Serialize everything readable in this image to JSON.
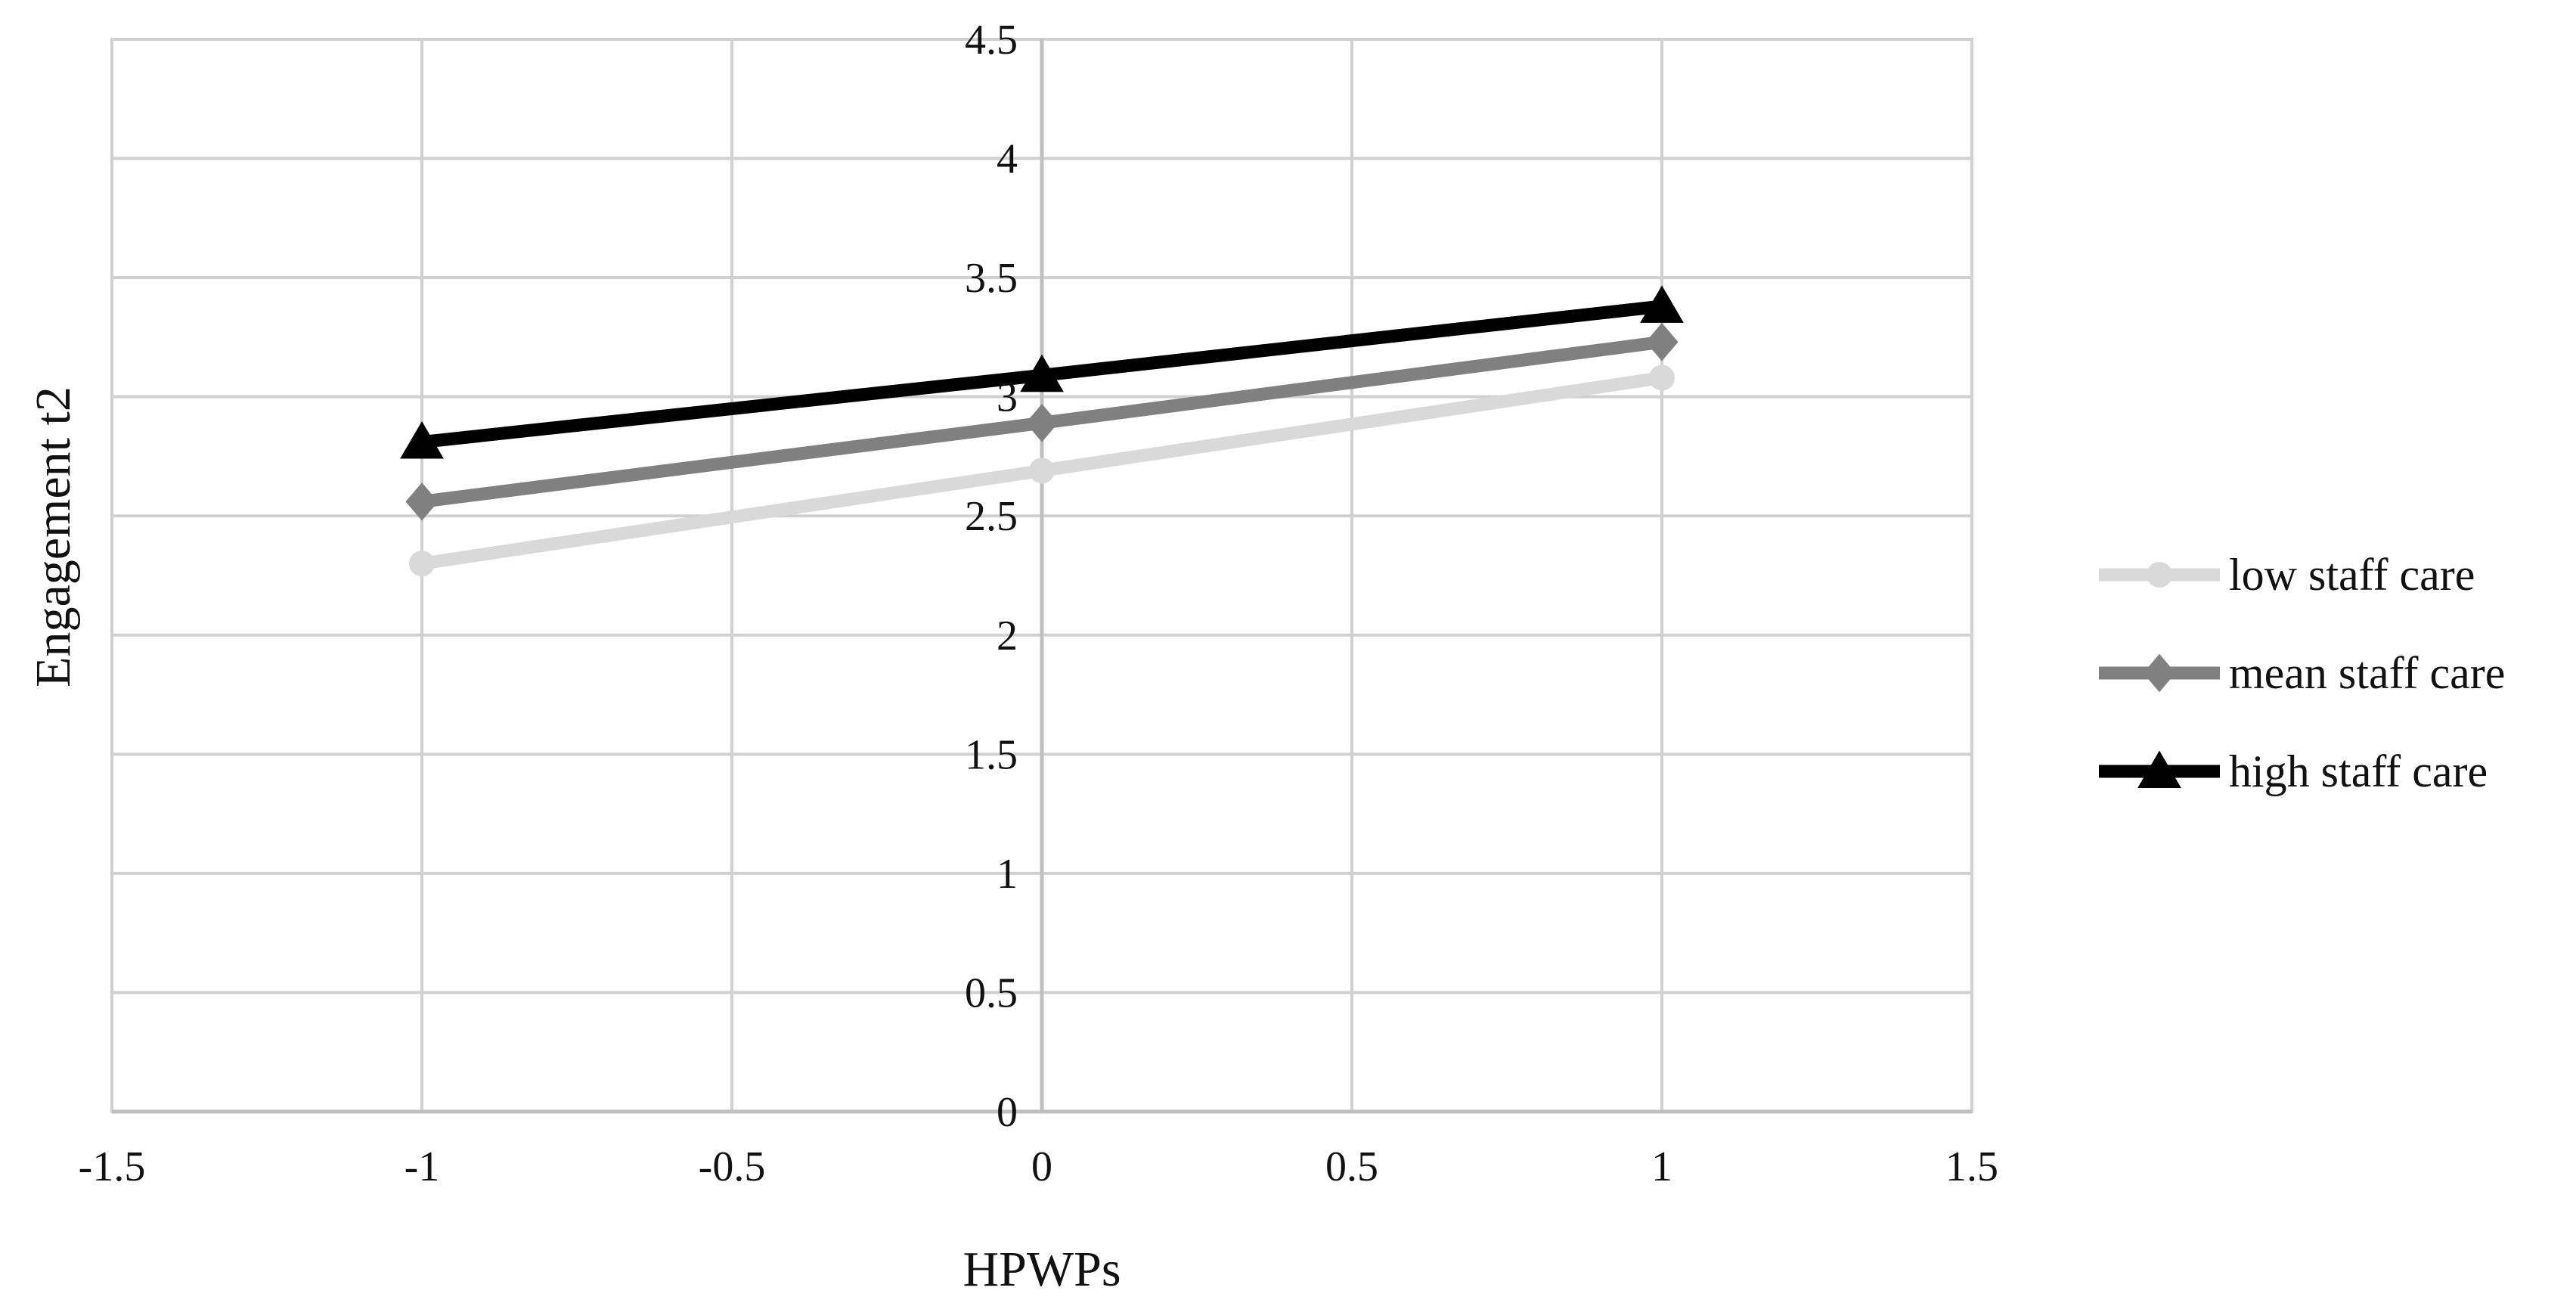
{
  "chart_data": {
    "type": "line",
    "title": "",
    "xlabel": "HPWPs",
    "ylabel": "Engagement t2",
    "xlim": [
      -1.5,
      1.5
    ],
    "ylim": [
      0,
      4.5
    ],
    "x_ticks": [
      "-1.5",
      "-1",
      "-0.5",
      "0",
      "0.5",
      "1",
      "1.5"
    ],
    "y_ticks": [
      "0",
      "0.5",
      "1",
      "1.5",
      "2",
      "2.5",
      "3",
      "3.5",
      "4",
      "4.5"
    ],
    "grid": true,
    "legend_position": "right",
    "x": [
      -1,
      0,
      1
    ],
    "series": [
      {
        "name": "low staff care",
        "values": [
          2.3,
          2.69,
          3.08
        ],
        "color": "#d9d9d9",
        "marker": "circle"
      },
      {
        "name": "mean staff care",
        "values": [
          2.56,
          2.89,
          3.23
        ],
        "color": "#808080",
        "marker": "diamond"
      },
      {
        "name": "high staff care",
        "values": [
          2.81,
          3.09,
          3.38
        ],
        "color": "#000000",
        "marker": "triangle"
      }
    ]
  }
}
